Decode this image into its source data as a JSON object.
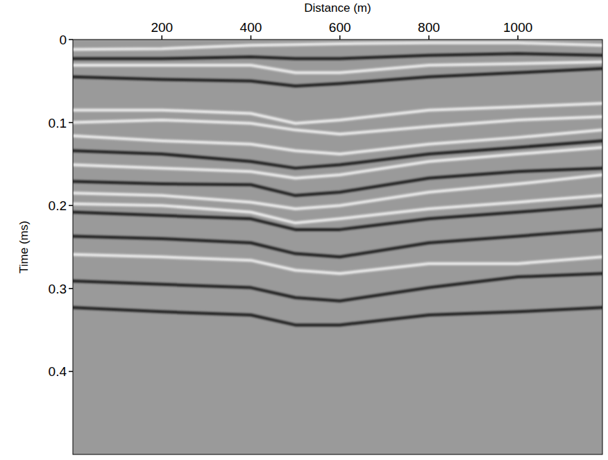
{
  "chart_data": {
    "type": "line",
    "x_label": "Distance (m)",
    "y_label": "Time (ms)",
    "x": [
      0,
      200,
      400,
      500,
      600,
      800,
      1000,
      1190
    ],
    "xlim": [
      0,
      1190
    ],
    "xticks": [
      200,
      400,
      600,
      800,
      1000
    ],
    "ylim": [
      0,
      0.5
    ],
    "yticks": [
      0,
      0.1,
      0.2,
      0.3,
      0.4
    ],
    "series": [
      {
        "color": "#ffffff",
        "values": [
          0.012,
          0.011,
          0.007,
          0.006,
          0.005,
          0.004,
          0.004,
          0.007
        ]
      },
      {
        "color": "#000000",
        "values": [
          0.023,
          0.023,
          0.021,
          0.023,
          0.023,
          0.019,
          0.017,
          0.019
        ]
      },
      {
        "color": "#ffffff",
        "values": [
          0.031,
          0.031,
          0.031,
          0.04,
          0.04,
          0.031,
          0.029,
          0.027
        ]
      },
      {
        "color": "#000000",
        "values": [
          0.045,
          0.048,
          0.05,
          0.056,
          0.053,
          0.045,
          0.04,
          0.035
        ]
      },
      {
        "color": "#ffffff",
        "values": [
          0.085,
          0.085,
          0.089,
          0.101,
          0.097,
          0.085,
          0.081,
          0.077
        ]
      },
      {
        "color": "#ffffff",
        "values": [
          0.1,
          0.097,
          0.101,
          0.109,
          0.114,
          0.105,
          0.097,
          0.093
        ]
      },
      {
        "color": "#ffffff",
        "values": [
          0.116,
          0.122,
          0.126,
          0.134,
          0.138,
          0.126,
          0.118,
          0.109
        ]
      },
      {
        "color": "#000000",
        "values": [
          0.134,
          0.138,
          0.147,
          0.155,
          0.151,
          0.138,
          0.13,
          0.122
        ]
      },
      {
        "color": "#ffffff",
        "values": [
          0.151,
          0.155,
          0.159,
          0.167,
          0.163,
          0.147,
          0.138,
          0.13
        ]
      },
      {
        "color": "#000000",
        "values": [
          0.171,
          0.174,
          0.175,
          0.188,
          0.184,
          0.167,
          0.159,
          0.155
        ]
      },
      {
        "color": "#ffffff",
        "values": [
          0.185,
          0.188,
          0.196,
          0.204,
          0.2,
          0.184,
          0.174,
          0.163
        ]
      },
      {
        "color": "#ffffff",
        "values": [
          0.198,
          0.2,
          0.208,
          0.221,
          0.216,
          0.204,
          0.196,
          0.188
        ]
      },
      {
        "color": "#000000",
        "values": [
          0.208,
          0.212,
          0.216,
          0.229,
          0.229,
          0.216,
          0.208,
          0.2
        ]
      },
      {
        "color": "#000000",
        "values": [
          0.237,
          0.24,
          0.245,
          0.258,
          0.262,
          0.245,
          0.237,
          0.229
        ]
      },
      {
        "color": "#ffffff",
        "values": [
          0.259,
          0.262,
          0.266,
          0.278,
          0.282,
          0.27,
          0.27,
          0.262
        ]
      },
      {
        "color": "#000000",
        "values": [
          0.291,
          0.295,
          0.299,
          0.311,
          0.315,
          0.299,
          0.286,
          0.282
        ]
      },
      {
        "color": "#000000",
        "values": [
          0.323,
          0.328,
          0.332,
          0.344,
          0.344,
          0.332,
          0.328,
          0.323
        ]
      }
    ]
  }
}
